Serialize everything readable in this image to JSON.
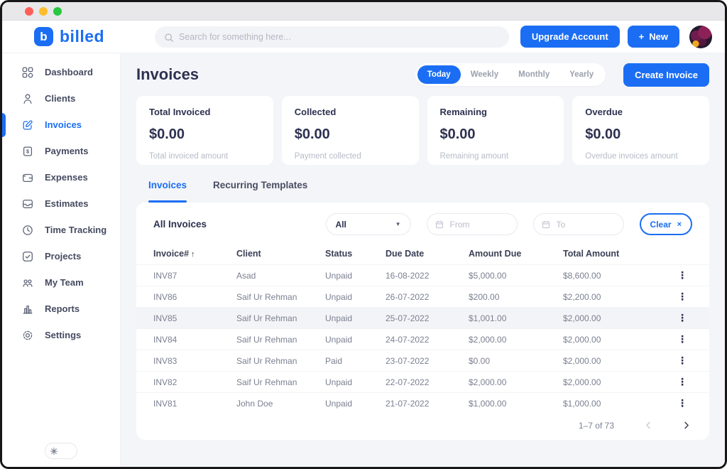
{
  "colors": {
    "primary": "#1b6ef3",
    "traffic_lights": [
      "#ff5f57",
      "#febc2e",
      "#28c840"
    ]
  },
  "brand": {
    "logo_letter": "b",
    "name": "billed"
  },
  "topbar": {
    "search_placeholder": "Search for something here...",
    "upgrade_label": "Upgrade Account",
    "new_label": "New",
    "plus_glyph": "+"
  },
  "sidebar": {
    "items": [
      {
        "label": "Dashboard",
        "icon": "grid",
        "active": false
      },
      {
        "label": "Clients",
        "icon": "person",
        "active": false
      },
      {
        "label": "Invoices",
        "icon": "edit",
        "active": true
      },
      {
        "label": "Payments",
        "icon": "payment",
        "active": false
      },
      {
        "label": "Expenses",
        "icon": "wallet",
        "active": false
      },
      {
        "label": "Estimates",
        "icon": "inbox",
        "active": false
      },
      {
        "label": "Time Tracking",
        "icon": "clock",
        "active": false
      },
      {
        "label": "Projects",
        "icon": "check-square",
        "active": false
      },
      {
        "label": "My Team",
        "icon": "team",
        "active": false
      },
      {
        "label": "Reports",
        "icon": "bar-chart",
        "active": false
      },
      {
        "label": "Settings",
        "icon": "gear",
        "active": false
      }
    ]
  },
  "page": {
    "title": "Invoices",
    "period_tabs": [
      "Today",
      "Weekly",
      "Monthly",
      "Yearly"
    ],
    "active_period": "Today",
    "create_button": "Create Invoice"
  },
  "stats": [
    {
      "title": "Total Invoiced",
      "value": "$0.00",
      "subtitle": "Total invoiced amount"
    },
    {
      "title": "Collected",
      "value": "$0.00",
      "subtitle": "Payment collected"
    },
    {
      "title": "Remaining",
      "value": "$0.00",
      "subtitle": "Remaining amount"
    },
    {
      "title": "Overdue",
      "value": "$0.00",
      "subtitle": "Overdue invoices amount"
    }
  ],
  "content_tabs": [
    {
      "label": "Invoices",
      "active": true
    },
    {
      "label": "Recurring Templates",
      "active": false
    }
  ],
  "table": {
    "section_title": "All Invoices",
    "filter_value": "All",
    "from_placeholder": "From",
    "to_placeholder": "To",
    "clear_label": "Clear",
    "clear_x": "×",
    "columns": [
      "Invoice#",
      "Client",
      "Status",
      "Due Date",
      "Amount Due",
      "Total Amount"
    ],
    "sort_column": "Invoice#",
    "sort_arrow": "↑",
    "rows": [
      {
        "invoice": "INV87",
        "client": "Asad",
        "status": "Unpaid",
        "due_date": "16-08-2022",
        "amount_due": "$5,000.00",
        "total_amount": "$8,600.00",
        "highlighted": false
      },
      {
        "invoice": "INV86",
        "client": "Saif Ur Rehman",
        "status": "Unpaid",
        "due_date": "26-07-2022",
        "amount_due": "$200.00",
        "total_amount": "$2,200.00",
        "highlighted": false
      },
      {
        "invoice": "INV85",
        "client": "Saif Ur Rehman",
        "status": "Unpaid",
        "due_date": "25-07-2022",
        "amount_due": "$1,001.00",
        "total_amount": "$2,000.00",
        "highlighted": true
      },
      {
        "invoice": "INV84",
        "client": "Saif Ur Rehman",
        "status": "Unpaid",
        "due_date": "24-07-2022",
        "amount_due": "$2,000.00",
        "total_amount": "$2,000.00",
        "highlighted": false
      },
      {
        "invoice": "INV83",
        "client": "Saif Ur Rehman",
        "status": "Paid",
        "due_date": "23-07-2022",
        "amount_due": "$0.00",
        "total_amount": "$2,000.00",
        "highlighted": false
      },
      {
        "invoice": "INV82",
        "client": "Saif Ur Rehman",
        "status": "Unpaid",
        "due_date": "22-07-2022",
        "amount_due": "$2,000.00",
        "total_amount": "$2,000.00",
        "highlighted": false
      },
      {
        "invoice": "INV81",
        "client": "John Doe",
        "status": "Unpaid",
        "due_date": "21-07-2022",
        "amount_due": "$1,000.00",
        "total_amount": "$1,000.00",
        "highlighted": false
      }
    ],
    "pagination": {
      "info": "1–7 of 73"
    }
  }
}
